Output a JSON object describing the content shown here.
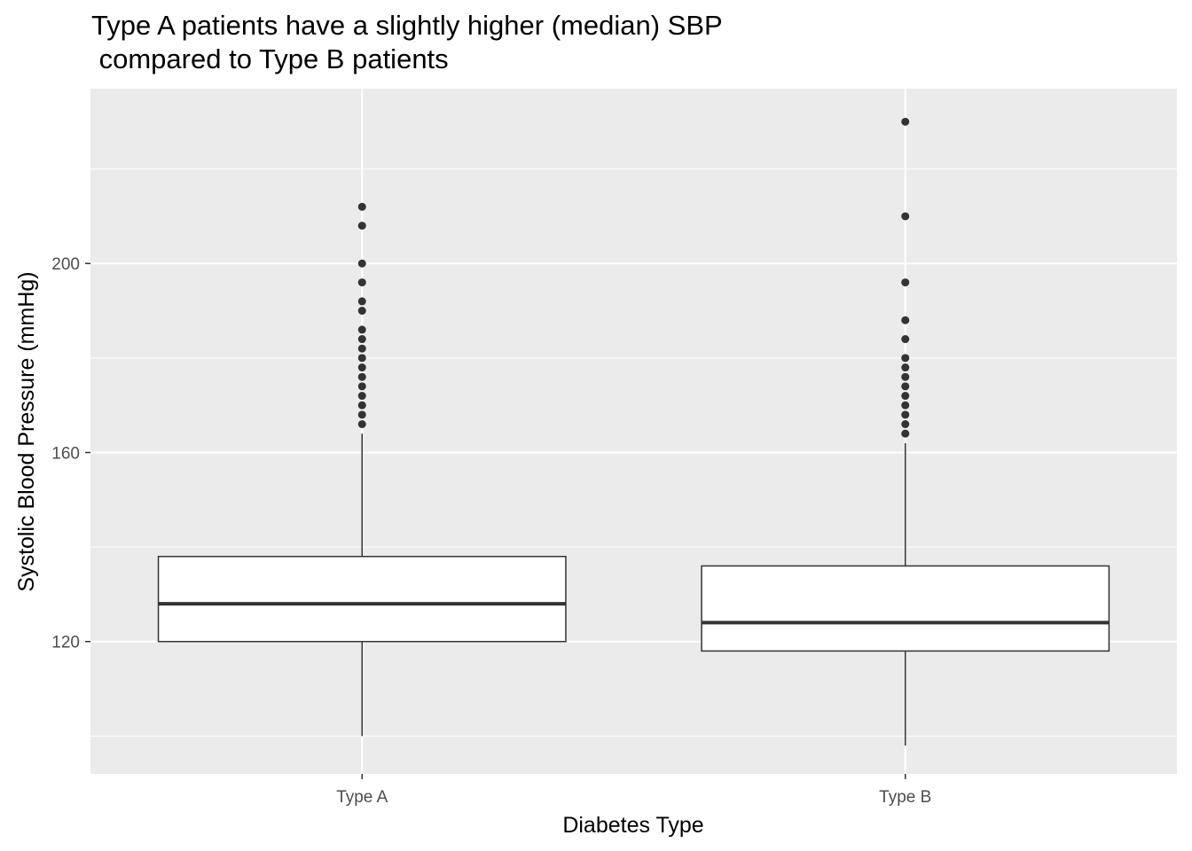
{
  "chart_data": {
    "type": "boxplot",
    "title_line1": "Type A patients have a slightly higher (median) SBP",
    "title_line2": " compared to Type B patients",
    "xlabel": "Diabetes Type",
    "ylabel": "Systolic Blood Pressure (mmHg)",
    "categories": [
      "Type A",
      "Type B"
    ],
    "ylim": [
      92,
      237
    ],
    "yticks": [
      120,
      160,
      200
    ],
    "ytick_labels": [
      "120",
      "160",
      "200"
    ],
    "grid": true,
    "colors": {
      "panel": "#ebebeb",
      "grid": "#ffffff",
      "box_fill": "#ffffff",
      "stroke": "#333333",
      "text": "#4d4d4d"
    },
    "boxes": [
      {
        "category": "Type A",
        "whisker_low": 100,
        "q1": 120,
        "median": 128,
        "q3": 138,
        "whisker_high": 164,
        "outliers": [
          166,
          168,
          170,
          172,
          174,
          176,
          178,
          180,
          182,
          184,
          186,
          190,
          192,
          196,
          200,
          208,
          212
        ]
      },
      {
        "category": "Type B",
        "whisker_low": 98,
        "q1": 118,
        "median": 124,
        "q3": 136,
        "whisker_high": 162,
        "outliers": [
          164,
          166,
          168,
          170,
          172,
          174,
          176,
          178,
          180,
          184,
          188,
          196,
          210,
          230
        ]
      }
    ]
  }
}
